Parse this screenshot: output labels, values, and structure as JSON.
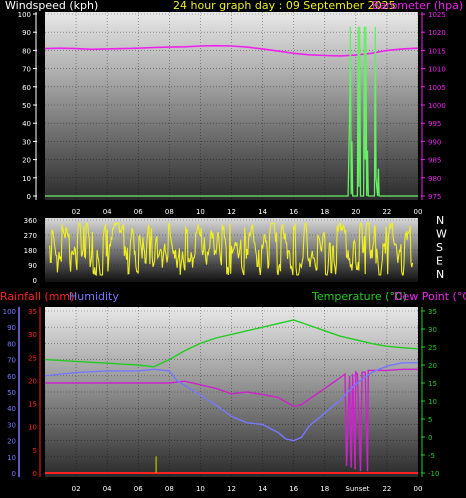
{
  "header": {
    "left_title": "Windspeed (kph)",
    "center_title": "24 hour graph day : 09 September 2025",
    "right_title": "Barometer (hpa)"
  },
  "colors": {
    "wind": "#66ee66",
    "baro": "#ee22ee",
    "direction": "#eeee22",
    "rain": "#ff2222",
    "humidity": "#7777ff",
    "temperature": "#22cc22",
    "dewpoint": "#cc22cc",
    "gust_marker": "#aaaa00",
    "axis_text": "#ffffff"
  },
  "chart_data": [
    {
      "type": "line",
      "title": "Windspeed (kph) / Barometer (hpa)",
      "x_tick_labels": [
        "02",
        "04",
        "06",
        "08",
        "10",
        "12",
        "14",
        "16",
        "18",
        "20",
        "22",
        "00"
      ],
      "x_range_hours": [
        0,
        24
      ],
      "y_left": {
        "label": "Windspeed (kph)",
        "ylim": [
          0,
          100
        ],
        "ticks": [
          0,
          10,
          20,
          30,
          40,
          50,
          60,
          70,
          80,
          90,
          100
        ]
      },
      "y_right": {
        "label": "Barometer (hpa)",
        "ylim": [
          975,
          1025
        ],
        "ticks": [
          975,
          980,
          985,
          990,
          995,
          1000,
          1005,
          1010,
          1015,
          1020,
          1025
        ]
      },
      "series": [
        {
          "name": "Barometer",
          "axis": "right",
          "x": [
            0,
            1,
            2,
            3,
            4,
            5,
            6,
            7,
            8,
            9,
            10,
            11,
            12,
            13,
            14,
            15,
            16,
            17,
            18,
            19,
            20,
            21,
            22,
            23,
            24
          ],
          "values": [
            1015.5,
            1015.6,
            1015.5,
            1015.3,
            1015.4,
            1015.5,
            1015.6,
            1015.8,
            1015.9,
            1016.0,
            1016.2,
            1016.3,
            1016.2,
            1015.9,
            1015.4,
            1014.8,
            1014.2,
            1013.8,
            1013.6,
            1013.5,
            1013.7,
            1014.2,
            1015.0,
            1015.4,
            1015.6
          ]
        },
        {
          "name": "Windspeed",
          "axis": "left",
          "x": [
            0,
            19.5,
            19.6,
            19.65,
            19.7,
            19.75,
            19.8,
            20.1,
            20.15,
            20.2,
            20.25,
            20.3,
            20.5,
            20.55,
            20.6,
            20.65,
            20.7,
            20.75,
            20.8,
            21.2,
            21.25,
            21.3,
            21.4,
            21.45,
            21.5,
            21.55,
            24
          ],
          "values": [
            0,
            0,
            45,
            93,
            1,
            30,
            0,
            0,
            93,
            5,
            93,
            0,
            0,
            93,
            20,
            93,
            0,
            25,
            0,
            0,
            93,
            10,
            0,
            15,
            0,
            0,
            0
          ]
        }
      ]
    },
    {
      "type": "scatter",
      "title": "Wind direction",
      "x_range_hours": [
        0,
        24
      ],
      "y_left": {
        "ylim": [
          0,
          360
        ],
        "ticks": [
          0,
          90,
          180,
          270,
          360
        ]
      },
      "y_right_labels": [
        "N",
        "W",
        "S",
        "E",
        "N"
      ],
      "series": [
        {
          "name": "Direction",
          "sampling": "pseudo-random trace",
          "seed": 7,
          "min": 30,
          "max": 340,
          "x_start": 0.3,
          "x_end": 23.7
        }
      ]
    },
    {
      "type": "line",
      "title": "Rainfall / Humidity / Temperature / Dew Point",
      "legend": {
        "rainfall": "Rainfall (mm)",
        "humidity": "Humidity",
        "temperature": "Temperature (°C)",
        "dewpoint": "Dew Point (°C)"
      },
      "x_tick_labels": [
        "02",
        "04",
        "06",
        "08",
        "10",
        "12",
        "14",
        "16",
        "18",
        "22",
        "00"
      ],
      "sunset_label": "Sunset",
      "x_range_hours": [
        0,
        24
      ],
      "y_humidity": {
        "ylim": [
          0,
          100
        ],
        "ticks": [
          0,
          10,
          20,
          30,
          40,
          50,
          60,
          70,
          80,
          90,
          100
        ]
      },
      "y_rain": {
        "ylim": [
          0,
          35
        ],
        "ticks": [
          0,
          5,
          10,
          15,
          20,
          25,
          30,
          35
        ]
      },
      "y_temp": {
        "ylim": [
          -10,
          35
        ],
        "ticks": [
          -10,
          -5,
          0,
          5,
          10,
          15,
          20,
          25,
          30,
          35
        ]
      },
      "series": [
        {
          "name": "Temperature",
          "axis": "temp",
          "x": [
            0,
            2,
            4,
            6,
            7,
            8,
            9,
            10,
            11,
            12,
            13,
            14,
            15,
            16,
            17,
            18,
            19,
            20,
            21,
            22,
            23,
            24
          ],
          "values": [
            21.5,
            21,
            20.5,
            20,
            19.5,
            21.5,
            24,
            26,
            27.5,
            28.5,
            29.5,
            30.5,
            31.5,
            32.5,
            31,
            29.5,
            28,
            27,
            26,
            25.2,
            24.8,
            24.5
          ]
        },
        {
          "name": "Dew Point",
          "axis": "temp",
          "x": [
            0,
            2,
            4,
            6,
            8,
            9,
            10,
            11,
            12,
            13,
            14,
            15,
            16,
            16.5,
            17,
            18,
            19,
            19.3,
            19.4,
            19.6,
            19.7,
            19.8,
            19.95,
            20.0,
            20.1,
            20.3,
            20.4,
            20.5,
            20.6,
            20.75,
            20.8,
            21,
            22,
            23,
            24
          ],
          "values": [
            15,
            15,
            15,
            15,
            15,
            15.5,
            14.5,
            13.5,
            12,
            12.5,
            11.8,
            11,
            8.5,
            9,
            10.5,
            13.5,
            16.5,
            17.5,
            -8,
            17,
            -8.5,
            17.5,
            -9,
            18,
            17.5,
            -9.5,
            18,
            18,
            18,
            -9.5,
            18.5,
            18.5,
            18.5,
            18.8,
            18.8
          ]
        },
        {
          "name": "Humidity",
          "axis": "humidity",
          "x": [
            0,
            2,
            4,
            6,
            7,
            8,
            8.5,
            9,
            10,
            11,
            12,
            13,
            14,
            15,
            15.5,
            16,
            16.5,
            17,
            18,
            19,
            20,
            21,
            22,
            23,
            24
          ],
          "values": [
            60,
            62,
            63,
            63,
            64,
            63,
            57,
            54,
            48,
            42,
            35,
            31,
            30,
            25,
            21,
            20,
            22,
            29,
            37,
            45,
            55,
            62,
            66,
            68,
            68
          ]
        },
        {
          "name": "Rainfall",
          "axis": "rain",
          "x": [
            0,
            24
          ],
          "values": [
            0,
            0
          ]
        }
      ],
      "annotations": [
        {
          "type": "vertical_marker",
          "x": 7.15,
          "height_value": 3.6,
          "axis": "rain",
          "color_key": "gust_marker"
        }
      ]
    }
  ]
}
